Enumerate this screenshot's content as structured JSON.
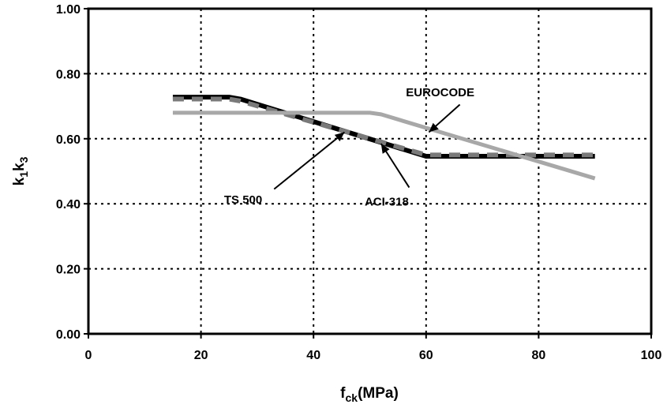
{
  "chart_data": {
    "type": "line",
    "xlabel": {
      "main": "f",
      "sub": "ck",
      "rest": "(MPa)"
    },
    "ylabel": {
      "p1": "k",
      "s1": "1",
      "p2": "k",
      "s2": "3"
    },
    "xlim": [
      0,
      100
    ],
    "ylim": [
      0,
      1.0
    ],
    "xticks": [
      0,
      20,
      40,
      60,
      80,
      100
    ],
    "yticks": [
      0,
      0.2,
      0.4,
      0.6,
      0.8,
      1.0
    ],
    "xtick_labels": [
      "0",
      "20",
      "40",
      "60",
      "80",
      "100"
    ],
    "ytick_labels": [
      "0.00",
      "0.20",
      "0.40",
      "0.60",
      "0.80",
      "1.00"
    ],
    "grid": true,
    "series": [
      {
        "name": "TS 500",
        "color": "#000000",
        "style": "solid-thick",
        "x": [
          15,
          25,
          27,
          60,
          90
        ],
        "y": [
          0.728,
          0.728,
          0.722,
          0.546,
          0.546
        ]
      },
      {
        "name": "ACI-318",
        "color": "#7a7a7a",
        "style": "dashed",
        "x": [
          15,
          25,
          27,
          60,
          90
        ],
        "y": [
          0.722,
          0.722,
          0.716,
          0.55,
          0.55
        ]
      },
      {
        "name": "EUROCODE",
        "color": "#a8a8a8",
        "style": "solid",
        "x": [
          15,
          50,
          52,
          90
        ],
        "y": [
          0.68,
          0.68,
          0.675,
          0.478
        ]
      }
    ],
    "annotations": [
      {
        "text": "EUROCODE",
        "series": "EUROCODE",
        "label_at": [
          62.5,
          0.73
        ],
        "arrow_from": [
          66,
          0.705
        ],
        "arrow_to": [
          60.5,
          0.62
        ]
      },
      {
        "text": "TS 500",
        "series": "TS 500",
        "label_at": [
          27.5,
          0.4
        ],
        "arrow_from": [
          33,
          0.445
        ],
        "arrow_to": [
          45.5,
          0.62
        ]
      },
      {
        "text": "ACI-318",
        "series": "ACI-318",
        "label_at": [
          53,
          0.395
        ],
        "arrow_from": [
          57,
          0.45
        ],
        "arrow_to": [
          52,
          0.585
        ]
      }
    ]
  }
}
